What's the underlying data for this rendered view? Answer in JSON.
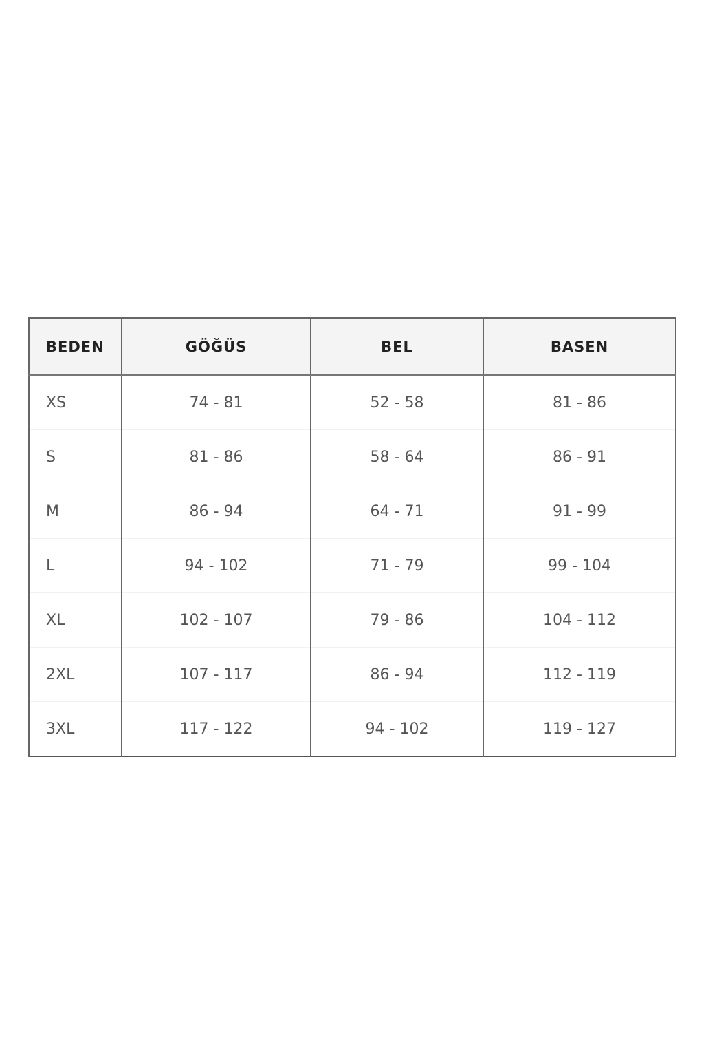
{
  "table": {
    "headers": [
      "BEDEN",
      "GÖĞÜS",
      "BEL",
      "BASEN"
    ],
    "rows": [
      [
        "XS",
        "74 - 81",
        "52 - 58",
        "81 - 86"
      ],
      [
        "S",
        "81 - 86",
        "58 - 64",
        "86 - 91"
      ],
      [
        "M",
        "86 - 94",
        "64 - 71",
        "91 - 99"
      ],
      [
        "L",
        "94 - 102",
        "71 - 79",
        "99 - 104"
      ],
      [
        "XL",
        "102 - 107",
        "79 - 86",
        "104 - 112"
      ],
      [
        "2XL",
        "107 - 117",
        "86 - 94",
        "112 - 119"
      ],
      [
        "3XL",
        "117 - 122",
        "94 - 102",
        "119 - 127"
      ]
    ]
  }
}
